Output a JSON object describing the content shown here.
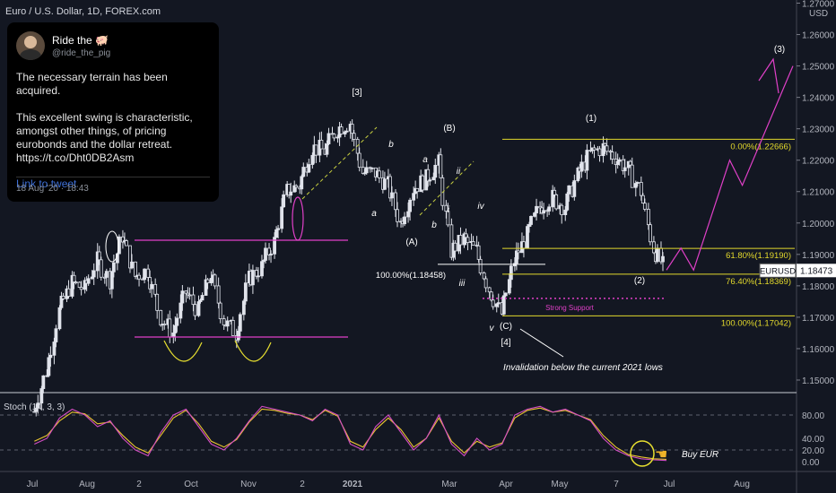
{
  "header": {
    "symbol_title": "Euro / U.S. Dollar, 1D, FOREX.com",
    "currency": "USD"
  },
  "tweet": {
    "name": "Ride the 🐖",
    "handle": "@ride_the_pig",
    "text": "The necessary terrain has been acquired.\n\nThis excellent swing is characteristic, amongst other things, of pricing eurobonds and the dollar retreat. https://t.co/Dht0DB2Asm",
    "link": "Link to tweet",
    "date": "18 Aug '20 · 18:43"
  },
  "chart_data": {
    "type": "candlestick",
    "price_axis_ticks": [
      "1.27000",
      "1.26000",
      "1.25000",
      "1.24000",
      "1.23000",
      "1.22000",
      "1.21000",
      "1.20000",
      "1.19000",
      "1.18000",
      "1.17000",
      "1.16000",
      "1.15000"
    ],
    "ylim": [
      1.146,
      1.271
    ],
    "current_price": {
      "symbol": "EURUSD",
      "value": "1.18473"
    },
    "time_labels": [
      "Jul",
      "Aug",
      "2",
      "Oct",
      "Nov",
      "2",
      "2021",
      "Mar",
      "Apr",
      "May",
      "7",
      "Jul",
      "Aug"
    ],
    "price_path": [
      [
        "2020-07-13",
        1.14
      ],
      [
        "2020-07-20",
        1.153
      ],
      [
        "2020-07-27",
        1.172
      ],
      [
        "2020-08-03",
        1.181
      ],
      [
        "2020-08-10",
        1.179
      ],
      [
        "2020-08-17",
        1.188
      ],
      [
        "2020-08-24",
        1.182
      ],
      [
        "2020-08-31",
        1.196
      ],
      [
        "2020-09-07",
        1.183
      ],
      [
        "2020-09-14",
        1.185
      ],
      [
        "2020-09-21",
        1.17
      ],
      [
        "2020-09-28",
        1.165
      ],
      [
        "2020-10-05",
        1.178
      ],
      [
        "2020-10-12",
        1.172
      ],
      [
        "2020-10-19",
        1.184
      ],
      [
        "2020-10-26",
        1.169
      ],
      [
        "2020-11-02",
        1.165
      ],
      [
        "2020-11-09",
        1.182
      ],
      [
        "2020-11-16",
        1.186
      ],
      [
        "2020-11-23",
        1.194
      ],
      [
        "2020-11-30",
        1.21
      ],
      [
        "2020-12-07",
        1.212
      ],
      [
        "2020-12-14",
        1.224
      ],
      [
        "2020-12-21",
        1.223
      ],
      [
        "2020-12-28",
        1.23
      ],
      [
        "2021-01-04",
        1.232
      ],
      [
        "2021-01-11",
        1.216
      ],
      [
        "2021-01-18",
        1.216
      ],
      [
        "2021-01-25",
        1.212
      ],
      [
        "2021-02-01",
        1.2
      ],
      [
        "2021-02-08",
        1.211
      ],
      [
        "2021-02-15",
        1.214
      ],
      [
        "2021-02-22",
        1.219
      ],
      [
        "2021-03-01",
        1.191
      ],
      [
        "2021-03-08",
        1.195
      ],
      [
        "2021-03-15",
        1.191
      ],
      [
        "2021-03-22",
        1.179
      ],
      [
        "2021-03-29",
        1.171
      ],
      [
        "2021-04-05",
        1.188
      ],
      [
        "2021-04-12",
        1.196
      ],
      [
        "2021-04-19",
        1.205
      ],
      [
        "2021-04-26",
        1.208
      ],
      [
        "2021-05-03",
        1.205
      ],
      [
        "2021-05-10",
        1.215
      ],
      [
        "2021-05-17",
        1.222
      ],
      [
        "2021-05-24",
        1.224
      ],
      [
        "2021-05-31",
        1.221
      ],
      [
        "2021-06-07",
        1.217
      ],
      [
        "2021-06-14",
        1.21
      ],
      [
        "2021-06-21",
        1.192
      ],
      [
        "2021-06-28",
        1.185
      ]
    ],
    "fib_levels": [
      {
        "label": "0.00%(1.22666)",
        "price": 1.22666
      },
      {
        "label": "61.80%(1.19190)",
        "price": 1.1919
      },
      {
        "label": "76.40%(1.18369)",
        "price": 1.18369
      },
      {
        "label": "100.00%(1.17042)",
        "price": 1.17042
      }
    ],
    "fib_left_label": {
      "label": "100.00%(1.18458)",
      "price": 1.18458
    },
    "support": {
      "label": "Strong Support",
      "price": 1.176
    },
    "wave_labels": [
      "[3]",
      "(B)",
      "b",
      "a",
      "ii",
      "a",
      "i",
      "b",
      "(A)",
      "iv",
      "iii",
      "v",
      "(C)",
      "[4]",
      "(1)",
      "(2)",
      "(3)"
    ],
    "annotation": "Invalidation below the current 2021 lows",
    "projection_path": [
      [
        "2021-06-28",
        1.185
      ],
      [
        "2021-07-06",
        1.192
      ],
      [
        "2021-07-13",
        1.185
      ],
      [
        "2021-08-02",
        1.22
      ],
      [
        "2021-08-09",
        1.212
      ],
      [
        "2021-09-06",
        1.25
      ]
    ],
    "stoch": {
      "title": "Stoch (14, 3, 3)",
      "ticks": [
        "80.00",
        "40.00",
        "20.00",
        "0.00"
      ],
      "ylim": [
        0,
        100
      ],
      "levels": [
        80,
        20
      ],
      "k": [
        30,
        40,
        75,
        90,
        80,
        60,
        70,
        40,
        20,
        10,
        50,
        80,
        90,
        60,
        30,
        20,
        40,
        70,
        95,
        90,
        85,
        80,
        70,
        90,
        80,
        30,
        20,
        60,
        80,
        50,
        20,
        40,
        80,
        30,
        10,
        40,
        20,
        30,
        80,
        90,
        95,
        85,
        90,
        80,
        70,
        40,
        20,
        10,
        5,
        3,
        2
      ],
      "d": [
        35,
        45,
        70,
        85,
        82,
        65,
        68,
        45,
        25,
        15,
        45,
        75,
        88,
        65,
        35,
        25,
        38,
        68,
        90,
        88,
        83,
        80,
        72,
        88,
        78,
        35,
        25,
        55,
        75,
        55,
        25,
        40,
        75,
        35,
        15,
        35,
        25,
        32,
        75,
        88,
        92,
        85,
        88,
        80,
        72,
        45,
        25,
        12,
        8,
        5,
        4
      ],
      "annotation": "Buy EUR",
      "annotation_icon": "pointing-hand-icon"
    },
    "colors": {
      "background": "#131722",
      "candle": "#e0e3eb",
      "fib": "#e3d92c",
      "magenta": "#e040c8",
      "stoch_k": "#d44ec4",
      "stoch_d": "#e8c330"
    }
  }
}
